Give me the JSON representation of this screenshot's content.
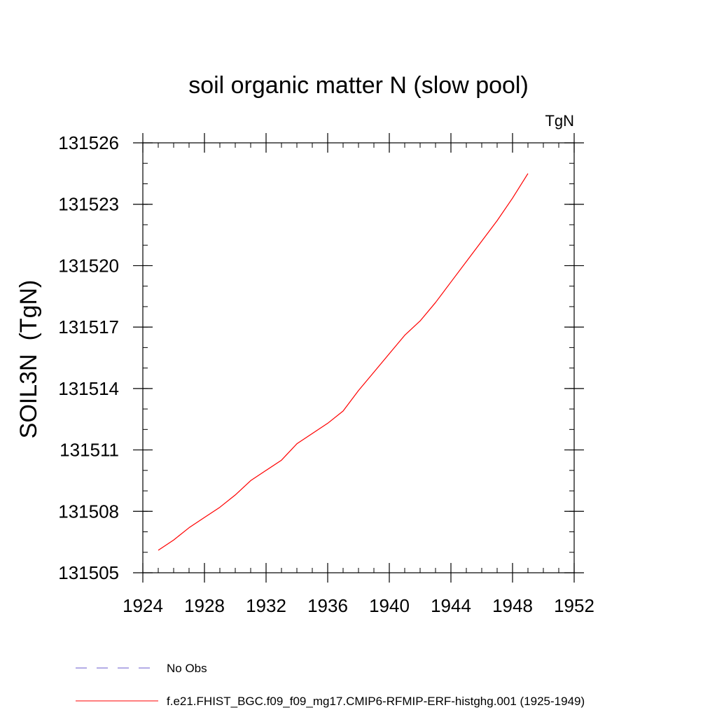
{
  "chart_data": {
    "type": "line",
    "title": "soil organic matter N (slow pool)",
    "units": "TgN",
    "xlabel": "",
    "ylabel": "SOIL3N  (TgN)",
    "xlim": [
      1924,
      1952
    ],
    "ylim": [
      131505,
      131526
    ],
    "xticks": [
      "1924",
      "1928",
      "1932",
      "1936",
      "1940",
      "1944",
      "1948",
      "1952"
    ],
    "yticks": [
      "131505",
      "131508",
      "131511",
      "131514",
      "131517",
      "131520",
      "131523",
      "131526"
    ],
    "x_minor_step": 1,
    "y_minor_step": 1,
    "series": [
      {
        "name": "f.e21.FHIST_BGC.f09_f09_mg17.CMIP6-RFMIP-ERF-histghg.001 (1925-1949)",
        "color": "#ff0000",
        "dash": "solid",
        "x": [
          1925,
          1926,
          1927,
          1928,
          1929,
          1930,
          1931,
          1932,
          1933,
          1934,
          1935,
          1936,
          1937,
          1938,
          1939,
          1940,
          1941,
          1942,
          1943,
          1944,
          1945,
          1946,
          1947,
          1948,
          1949
        ],
        "y": [
          131506.1,
          131506.6,
          131507.2,
          131507.7,
          131508.2,
          131508.8,
          131509.5,
          131510.0,
          131510.5,
          131511.3,
          131511.8,
          131512.3,
          131512.9,
          131513.9,
          131514.8,
          131515.7,
          131516.6,
          131517.3,
          131518.2,
          131519.2,
          131520.2,
          131521.2,
          131522.2,
          131523.3,
          131524.5
        ]
      }
    ],
    "legend": {
      "position": "bottom",
      "entries": [
        {
          "label": "No Obs",
          "color": "#6a5acd",
          "dash": "dashed"
        },
        {
          "label": "f.e21.FHIST_BGC.f09_f09_mg17.CMIP6-RFMIP-ERF-histghg.001 (1925-1949)",
          "color": "#ff0000",
          "dash": "solid"
        }
      ]
    }
  }
}
